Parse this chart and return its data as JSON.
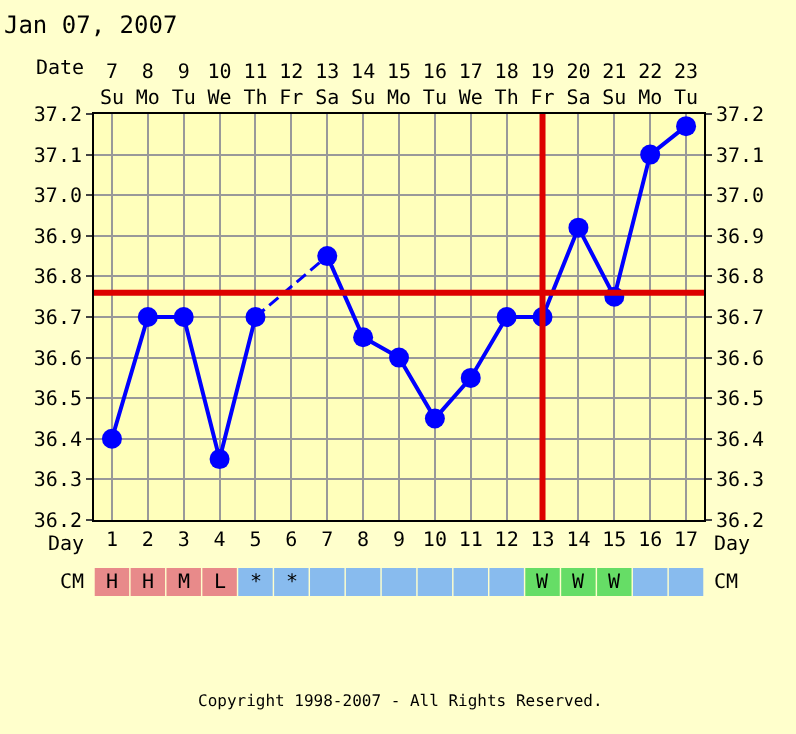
{
  "chart_data": [
    {
      "type": "line",
      "title": "Jan 07, 2007",
      "x": [
        1,
        2,
        3,
        4,
        5,
        6,
        7,
        8,
        9,
        10,
        11,
        12,
        13,
        14,
        15,
        16,
        17
      ],
      "xlim": [
        0.5,
        17.5
      ],
      "xticks": [
        1,
        2,
        3,
        4,
        5,
        6,
        7,
        8,
        9,
        10,
        11,
        12,
        13,
        14,
        15,
        16,
        17
      ],
      "xlabel": "Day",
      "x2lim": [
        "2007-01-06T12:00",
        "2007-01-23T12:00"
      ],
      "x2ticks": [
        {
          "value": "2007-01-07",
          "label": "7\nSu"
        },
        {
          "value": "2007-01-08",
          "label": "8\nMo"
        },
        {
          "value": "2007-01-09",
          "label": "9\nTu"
        },
        {
          "value": "2007-01-10",
          "label": "10\nWe"
        },
        {
          "value": "2007-01-11",
          "label": "11\nTh"
        },
        {
          "value": "2007-01-12",
          "label": "12\nFr"
        },
        {
          "value": "2007-01-13",
          "label": "13\nSa"
        },
        {
          "value": "2007-01-14",
          "label": "14\nSu"
        },
        {
          "value": "2007-01-15",
          "label": "15\nMo"
        },
        {
          "value": "2007-01-16",
          "label": "16\nTu"
        },
        {
          "value": "2007-01-17",
          "label": "17\nWe"
        },
        {
          "value": "2007-01-18",
          "label": "18\nTh"
        },
        {
          "value": "2007-01-19",
          "label": "19\nFr"
        },
        {
          "value": "2007-01-20",
          "label": "20\nSa"
        },
        {
          "value": "2007-01-21",
          "label": "21\nSu"
        },
        {
          "value": "2007-01-22",
          "label": "22\nMo"
        },
        {
          "value": "2007-01-23",
          "label": "23\nTu"
        }
      ],
      "x2label": "Date",
      "ylim": [
        36.2,
        37.2
      ],
      "yticks": [
        {
          "value": 36.2,
          "label": "36.2"
        },
        {
          "value": 36.3,
          "label": "36.3"
        },
        {
          "value": 36.4,
          "label": "36.4"
        },
        {
          "value": 36.5,
          "label": "36.5"
        },
        {
          "value": 36.6,
          "label": "36.6"
        },
        {
          "value": 36.7,
          "label": "36.7"
        },
        {
          "value": 36.8,
          "label": "36.8"
        },
        {
          "value": 36.9,
          "label": "36.9"
        },
        {
          "value": 37.0,
          "label": "37.0"
        },
        {
          "value": 37.1,
          "label": "37.1"
        },
        {
          "value": 37.2,
          "label": "37.2"
        }
      ],
      "y2lim": [
        36.2,
        37.2
      ],
      "y2ticks": [
        {
          "value": 36.2,
          "label": "36.2"
        },
        {
          "value": 36.3,
          "label": "36.3"
        },
        {
          "value": 36.4,
          "label": "36.4"
        },
        {
          "value": 36.5,
          "label": "36.5"
        },
        {
          "value": 36.6,
          "label": "36.6"
        },
        {
          "value": 36.7,
          "label": "36.7"
        },
        {
          "value": 36.8,
          "label": "36.8"
        },
        {
          "value": 36.9,
          "label": "36.9"
        },
        {
          "value": 37.0,
          "label": "37.0"
        },
        {
          "value": 37.1,
          "label": "37.1"
        },
        {
          "value": 37.2,
          "label": "37.2"
        }
      ],
      "grid": true,
      "marker": "circle",
      "series": [
        {
          "color": "#0000ff",
          "line_style": "solid",
          "values": [
            36.4,
            36.7,
            36.7,
            36.35,
            36.7,
            null,
            36.85,
            36.65,
            36.6,
            36.45,
            36.55,
            36.7,
            36.7,
            36.92,
            36.75,
            37.1,
            37.17
          ]
        }
      ],
      "ref_lines": [
        {
          "axis": "y",
          "value": 36.76,
          "color": "#dd0000"
        },
        {
          "axis": "x",
          "value": 13,
          "color": "#dd0000"
        }
      ],
      "annotations": [
        "Copyright 1998-2007 - All Rights Reserved."
      ]
    },
    {
      "type": "other",
      "ylabel": "CM",
      "categories": [
        "H",
        "H",
        "M",
        "L",
        "*",
        "*",
        null,
        null,
        null,
        null,
        null,
        null,
        "W",
        "W",
        "W",
        null,
        null
      ],
      "colors": [
        "#e88a8a",
        "#e88a8a",
        "#e88a8a",
        "#e88a8a",
        "#88bbee",
        "#88bbee",
        "#88bbee",
        "#88bbee",
        "#88bbee",
        "#88bbee",
        "#88bbee",
        "#88bbee",
        "#66dd66",
        "#66dd66",
        "#66dd66",
        "#88bbee",
        "#88bbee"
      ]
    }
  ]
}
